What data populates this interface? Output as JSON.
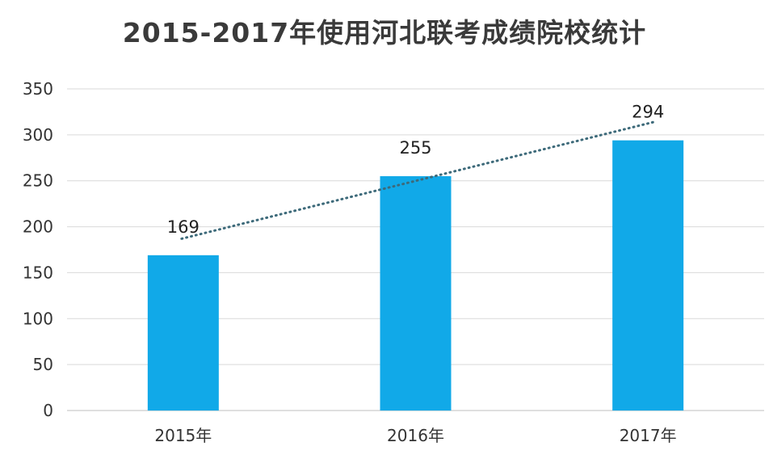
{
  "chart_data": {
    "type": "bar",
    "title": "2015-2017年使用河北联考成绩院校统计",
    "categories": [
      "2015年",
      "2016年",
      "2017年"
    ],
    "values": [
      169,
      255,
      294
    ],
    "data_labels": [
      "169",
      "255",
      "294"
    ],
    "yticks": [
      "0",
      "50",
      "100",
      "150",
      "200",
      "250",
      "300",
      "350"
    ],
    "ylim": [
      0,
      350
    ],
    "grid": true,
    "legend": "none",
    "trendline": {
      "style": "dotted",
      "type": "linear"
    },
    "colors": {
      "bar": "#11a9e8",
      "grid": "#d9d9d9",
      "trendline": "#3d6a7a"
    }
  }
}
